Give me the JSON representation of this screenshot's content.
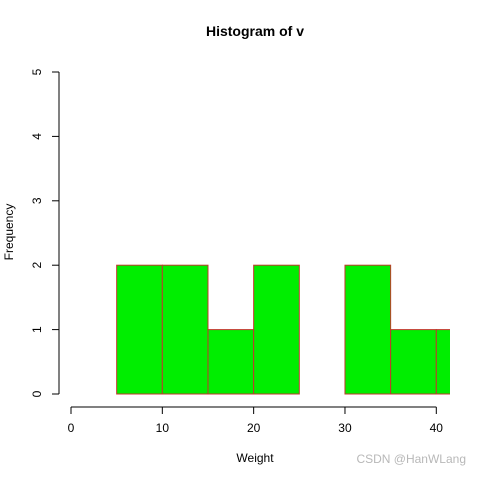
{
  "chart_data": {
    "type": "bar",
    "title": "Histogram of v",
    "xlabel": "Weight",
    "ylabel": "Frequency",
    "bins": [
      {
        "x0": 5,
        "x1": 10,
        "count": 2
      },
      {
        "x0": 10,
        "x1": 15,
        "count": 2
      },
      {
        "x0": 15,
        "x1": 20,
        "count": 1
      },
      {
        "x0": 20,
        "x1": 25,
        "count": 2
      },
      {
        "x0": 25,
        "x1": 30,
        "count": 0
      },
      {
        "x0": 30,
        "x1": 35,
        "count": 2
      },
      {
        "x0": 35,
        "x1": 40,
        "count": 1
      },
      {
        "x0": 40,
        "x1": 45,
        "count": 1
      }
    ],
    "xlim": [
      0,
      41.5
    ],
    "ylim": [
      0,
      5
    ],
    "x_ticks": [
      0,
      10,
      20,
      30,
      40
    ],
    "y_ticks": [
      0,
      1,
      2,
      3,
      4,
      5
    ],
    "bar_fill": "#00ee00",
    "bar_stroke": "#c0392b",
    "grid": false
  },
  "watermark": "CSDN @HanWLang"
}
